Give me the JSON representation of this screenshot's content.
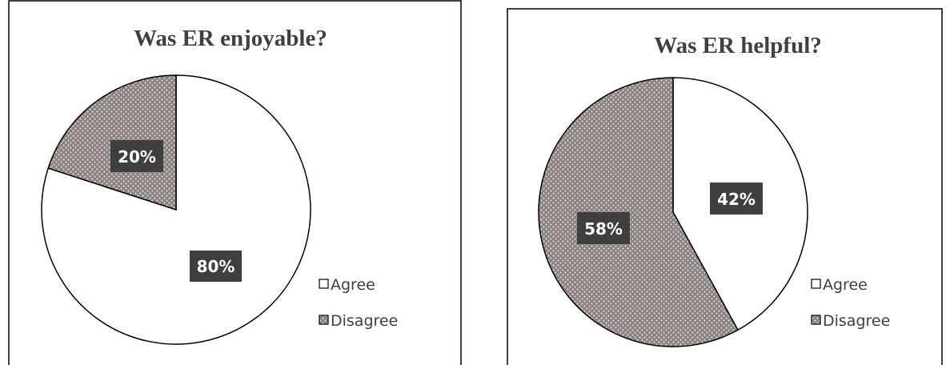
{
  "colors": {
    "agree_fill": "#ffffff",
    "disagree_fill": "#8a8280",
    "disagree_dot": "#d9d9d9",
    "slice_stroke": "#000000",
    "label_bg": "#3f3f3f",
    "frame": "#000000"
  },
  "chart_data": [
    {
      "type": "pie",
      "title": "Was ER enjoyable?",
      "categories": [
        "Agree",
        "Disagree"
      ],
      "values": [
        80,
        20
      ],
      "data_labels": [
        "80%",
        "20%"
      ],
      "legend": {
        "placement": "bottom-right",
        "entries": [
          "Agree",
          "Disagree"
        ]
      }
    },
    {
      "type": "pie",
      "title": "Was ER helpful?",
      "categories": [
        "Agree",
        "Disagree"
      ],
      "values": [
        42,
        58
      ],
      "data_labels": [
        "42%",
        "58%"
      ],
      "legend": {
        "placement": "bottom-right",
        "entries": [
          "Agree",
          "Disagree"
        ]
      }
    }
  ]
}
